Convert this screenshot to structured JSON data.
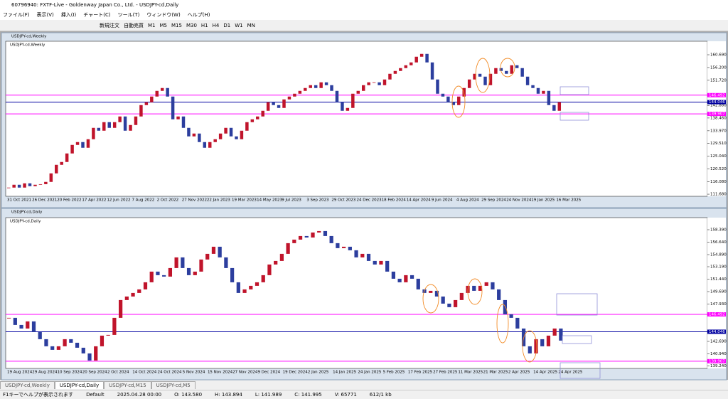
{
  "window": {
    "title": "60796940: FXTF-Live - Goldenway Japan Co., Ltd. - USDJPY-cd,Daily",
    "menu": [
      "ファイル(F)",
      "表示(V)",
      "挿入(I)",
      "チャート(C)",
      "ツール(T)",
      "ウィンドウ(W)",
      "ヘルプ(H)"
    ],
    "toolbar": [
      "新規注文",
      "自動売買"
    ],
    "timeframes": [
      "M1",
      "M5",
      "M15",
      "M30",
      "H1",
      "H4",
      "D1",
      "W1",
      "MN"
    ]
  },
  "charts": [
    {
      "title": "USDJPY-cd,Weekly",
      "label": "USDJPY-cd,Weekly",
      "ylim": [
        110.94,
        165.44
      ],
      "yticks": [
        {
          "value": 160.69,
          "label": "160.690"
        },
        {
          "value": 156.2,
          "label": "156.200"
        },
        {
          "value": 151.72,
          "label": "151.720"
        },
        {
          "value": 142.88,
          "label": "142.880"
        },
        {
          "value": 138.46,
          "label": "138.460"
        },
        {
          "value": 133.97,
          "label": "133.970"
        },
        {
          "value": 129.51,
          "label": "129.510"
        },
        {
          "value": 125.04,
          "label": "125.040"
        },
        {
          "value": 120.52,
          "label": "120.520"
        },
        {
          "value": 116.08,
          "label": "116.080"
        },
        {
          "value": 111.68,
          "label": "111.680"
        }
      ],
      "x_labels": [
        "31 Oct 2021",
        "26 Dec 2021",
        "20 Feb 2022",
        "17 Apr 2022",
        "12 Jun 2022",
        "7 Aug 2022",
        "2 Oct 2022",
        "27 Nov 2022",
        "22 Jan 2023",
        "19 Mar 2023",
        "14 May 2023",
        "9 Jul 2023",
        "3 Sep 2023",
        "29 Oct 2023",
        "24 Dec 2023",
        "18 Feb 2024",
        "14 Apr 2024",
        "9 Jun 2024",
        "4 Aug 2024",
        "29 Sep 2024",
        "24 Nov 2024",
        "19 Jan 2025",
        "16 Mar 2025"
      ],
      "levels": [
        {
          "value": 146.492,
          "color": "#ff00ff"
        },
        {
          "value": 144.046,
          "color": "#0000a0"
        },
        {
          "value": 139.907,
          "color": "#ff00ff"
        }
      ],
      "closes": [
        114,
        115,
        114,
        115.5,
        114.5,
        115,
        115.2,
        116,
        119,
        122,
        123,
        126,
        129,
        130,
        128,
        131,
        135,
        134,
        137,
        135,
        137,
        139,
        134,
        136,
        139,
        143,
        144,
        146,
        148,
        149,
        146,
        138,
        139,
        135,
        132,
        133,
        130,
        128,
        130,
        131,
        133,
        135,
        132,
        131,
        134,
        137,
        138,
        139,
        141,
        144,
        143,
        142,
        145,
        146,
        147,
        148,
        149,
        150,
        149,
        151,
        150,
        148,
        144,
        141,
        142,
        147,
        148,
        150,
        151,
        151,
        150,
        152,
        154,
        155,
        156,
        157,
        158,
        160,
        161,
        158,
        152,
        147,
        146,
        144,
        143,
        146,
        149,
        152,
        154,
        153,
        150,
        154,
        156,
        155,
        154,
        157,
        156,
        153,
        150,
        149,
        147,
        148,
        143,
        141,
        144
      ]
    },
    {
      "title": "USDJPY-cd,Daily",
      "label": "USDJPY-cd,Daily",
      "ylim": [
        138.89,
        160.09
      ],
      "yticks": [
        {
          "value": 158.39,
          "label": "158.390"
        },
        {
          "value": 156.64,
          "label": "156.640"
        },
        {
          "value": 154.89,
          "label": "154.890"
        },
        {
          "value": 153.19,
          "label": "153.190"
        },
        {
          "value": 151.44,
          "label": "151.440"
        },
        {
          "value": 149.69,
          "label": "149.690"
        },
        {
          "value": 147.93,
          "label": "147.930"
        },
        {
          "value": 142.69,
          "label": "142.690"
        },
        {
          "value": 140.94,
          "label": "140.940"
        },
        {
          "value": 139.24,
          "label": "139.240"
        }
      ],
      "x_labels": [
        "19 Aug 2024",
        "29 Aug 2024",
        "10 Sep 2024",
        "20 Sep 2024",
        "2 Oct 2024",
        "14 Oct 2024",
        "24 Oct 2024",
        "5 Nov 2024",
        "15 Nov 2024",
        "27 Nov 2024",
        "9 Dec 2024",
        "19 Dec 2024",
        "2 Jan 2025",
        "14 Jan 2025",
        "24 Jan 2025",
        "5 Feb 2025",
        "17 Feb 2025",
        "27 Feb 2025",
        "11 Mar 2025",
        "21 Mar 2025",
        "2 Apr 2025",
        "14 Apr 2025",
        "24 Apr 2025"
      ],
      "levels": [
        {
          "value": 146.492,
          "color": "#ff00ff"
        },
        {
          "value": 144.046,
          "color": "#0000a0"
        },
        {
          "value": 139.907,
          "color": "#ff00ff"
        }
      ],
      "closes": [
        146,
        145,
        144.5,
        145.5,
        144,
        143,
        142,
        141.5,
        142,
        143,
        142.5,
        141.8,
        141,
        140,
        142,
        143.5,
        143.6,
        146,
        148.5,
        149,
        149.5,
        150,
        151,
        152.5,
        152,
        151.8,
        153,
        154.5,
        153,
        152,
        152.5,
        154.2,
        155,
        156,
        154.5,
        153,
        151,
        149.5,
        150,
        150.5,
        151,
        152,
        153.5,
        154,
        155,
        156.5,
        157,
        157.5,
        157.3,
        158,
        158.2,
        157.5,
        156.5,
        155.8,
        156,
        155.5,
        154.5,
        155,
        154,
        153.5,
        154,
        152.5,
        151.5,
        151,
        152,
        151.5,
        150,
        149.5,
        149.8,
        149,
        148,
        147.5,
        148.5,
        149.5,
        150.5,
        149.8,
        150.5,
        151,
        150,
        148.5,
        146.5,
        146,
        144.5,
        142,
        141,
        143,
        142,
        143.5,
        144.5,
        142.8
      ]
    }
  ],
  "up_color": "#c0142b",
  "down_color": "#2c3e9e",
  "tabs": [
    "USDJPY-cd,Weekly",
    "USDJPY-cd,Daily",
    "USDJPY-cd,M15",
    "USDJPY-cd,M5"
  ],
  "status": [
    "F1キーでヘルプが表示されます",
    "Default",
    "2025.04.28 00:00",
    "O: 143.580",
    "H: 143.894",
    "L: 141.989",
    "C: 141.995",
    "V: 65771",
    "612/1 kb"
  ]
}
